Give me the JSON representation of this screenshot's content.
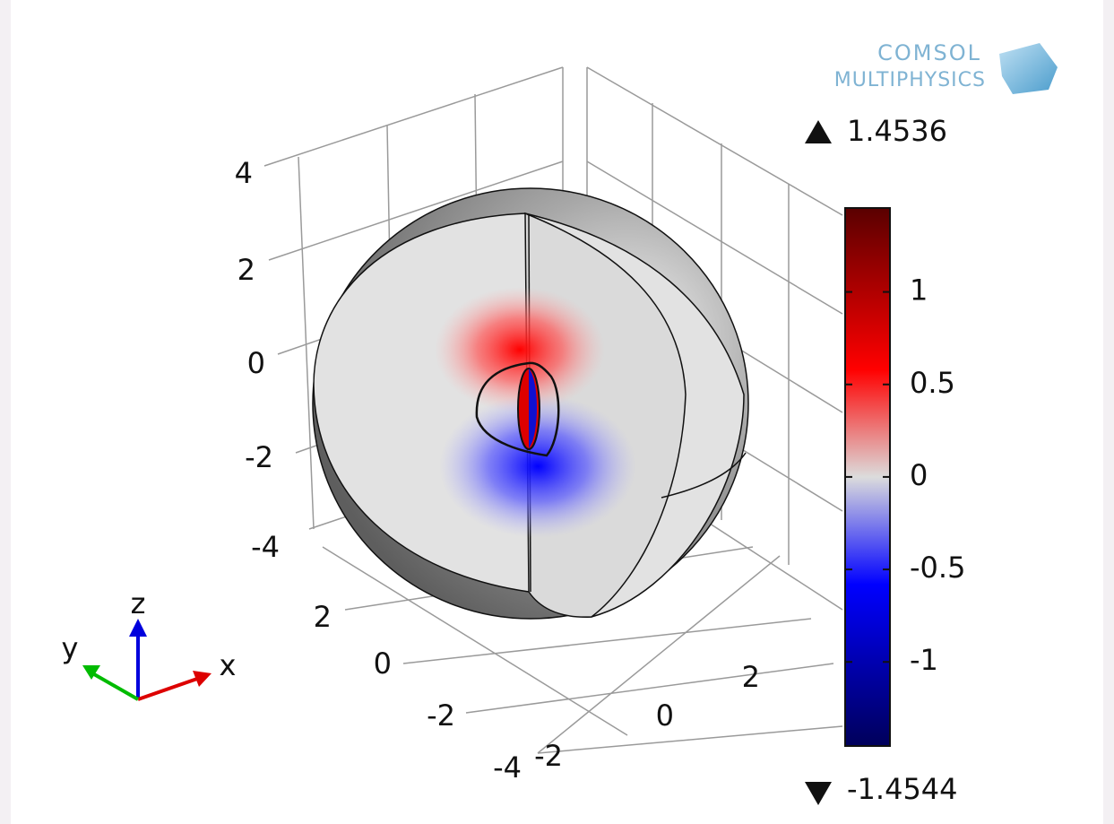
{
  "logo": {
    "line1": "COMSOL",
    "line2": "MULTIPHYSICS"
  },
  "colorbar": {
    "max": 1.4536,
    "min": -1.4544,
    "ticks": [
      1,
      0.5,
      0,
      -0.5,
      -1
    ]
  },
  "axes": {
    "z_ticks": [
      4,
      2,
      0,
      -2,
      -4
    ],
    "y_ticks": [
      2,
      0,
      -2,
      -4
    ],
    "x_ticks": [
      -2,
      0,
      2
    ]
  },
  "triad": {
    "x": "x",
    "y": "y",
    "z": "z"
  }
}
